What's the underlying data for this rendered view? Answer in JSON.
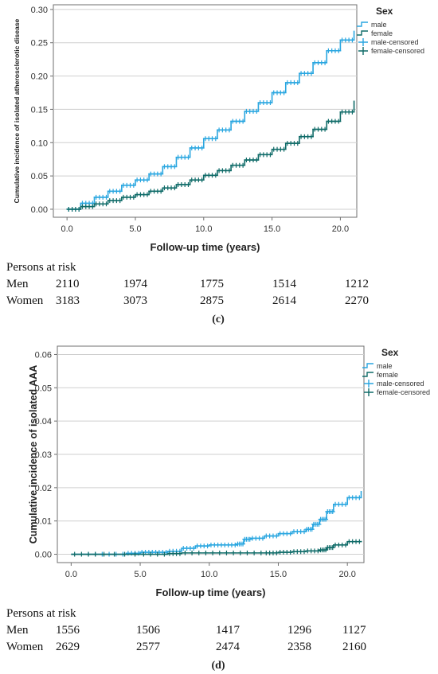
{
  "chart_data": [
    {
      "type": "line",
      "panel_label": "(c)",
      "xlabel": "Follow-up time (years)",
      "ylabel": "Cumulative incidence of isolated atherosclerotic disease",
      "xlim": [
        -1,
        21.2
      ],
      "ylim": [
        -0.012,
        0.307
      ],
      "xticks": [
        "0.0",
        "5.0",
        "10.0",
        "15.0",
        "20.0"
      ],
      "yticks": [
        "0.00",
        "0.05",
        "0.10",
        "0.15",
        "0.20",
        "0.25",
        "0.30"
      ],
      "xtick_values": [
        0,
        5,
        10,
        15,
        20
      ],
      "ytick_values": [
        0,
        0.05,
        0.1,
        0.15,
        0.2,
        0.25,
        0.3
      ],
      "grid": "horizontal",
      "legend": {
        "title": "Sex",
        "position": "top-right",
        "entries": [
          {
            "label": "male",
            "kind": "line",
            "color": "#29a6e0"
          },
          {
            "label": "female",
            "kind": "line",
            "color": "#0f6b68"
          },
          {
            "label": "male-censored",
            "kind": "plus",
            "color": "#29a6e0"
          },
          {
            "label": "female-censored",
            "kind": "plus",
            "color": "#0f6b68"
          }
        ]
      },
      "series": [
        {
          "name": "male",
          "color": "#29a6e0",
          "x": [
            0,
            1,
            2,
            3,
            4,
            5,
            6,
            7,
            8,
            9,
            10,
            11,
            12,
            13,
            14,
            15,
            16,
            17,
            18,
            19,
            20,
            21
          ],
          "y": [
            0.0,
            0.009,
            0.018,
            0.027,
            0.036,
            0.044,
            0.053,
            0.064,
            0.078,
            0.092,
            0.106,
            0.119,
            0.132,
            0.147,
            0.16,
            0.175,
            0.19,
            0.204,
            0.22,
            0.238,
            0.254,
            0.268
          ]
        },
        {
          "name": "female",
          "color": "#0f6b68",
          "x": [
            0,
            1,
            2,
            3,
            4,
            5,
            6,
            7,
            8,
            9,
            10,
            11,
            12,
            13,
            14,
            15,
            16,
            17,
            18,
            19,
            20,
            21
          ],
          "y": [
            0.0,
            0.004,
            0.008,
            0.013,
            0.018,
            0.022,
            0.027,
            0.032,
            0.037,
            0.044,
            0.051,
            0.058,
            0.066,
            0.074,
            0.082,
            0.09,
            0.099,
            0.109,
            0.12,
            0.132,
            0.146,
            0.163
          ]
        }
      ],
      "persons_at_risk": {
        "title": "Persons at risk",
        "rows": [
          {
            "label": "Men",
            "values": [
              "2110",
              "1974",
              "1775",
              "1514",
              "1212"
            ]
          },
          {
            "label": "Women",
            "values": [
              "3183",
              "3073",
              "2875",
              "2614",
              "2270"
            ]
          }
        ]
      }
    },
    {
      "type": "line",
      "panel_label": "(d)",
      "xlabel": "Follow-up time (years)",
      "ylabel": "Cumulative incidence of isolated AAA",
      "xlim": [
        -1,
        21.2
      ],
      "ylim": [
        -0.0025,
        0.0625
      ],
      "xticks": [
        "0.0",
        "5.0",
        "10.0",
        "15.0",
        "20.0"
      ],
      "yticks": [
        "0.00",
        "0.01",
        "0.02",
        "0.03",
        "0.04",
        "0.05",
        "0.06"
      ],
      "xtick_values": [
        0,
        5,
        10,
        15,
        20
      ],
      "ytick_values": [
        0,
        0.01,
        0.02,
        0.03,
        0.04,
        0.05,
        0.06
      ],
      "grid": "horizontal",
      "legend": {
        "title": "Sex",
        "position": "top-right",
        "entries": [
          {
            "label": "male",
            "kind": "line",
            "color": "#29a6e0"
          },
          {
            "label": "female",
            "kind": "line",
            "color": "#0f6b68"
          },
          {
            "label": "male-censored",
            "kind": "plus",
            "color": "#29a6e0"
          },
          {
            "label": "female-censored",
            "kind": "plus",
            "color": "#0f6b68"
          }
        ]
      },
      "series": [
        {
          "name": "male",
          "color": "#29a6e0",
          "x": [
            0,
            2,
            4,
            5,
            6,
            7,
            8,
            9,
            10,
            11,
            12,
            12.5,
            13,
            14,
            15,
            16,
            17,
            17.5,
            18,
            18.5,
            19,
            20,
            21
          ],
          "y": [
            0.0,
            0.0,
            0.0003,
            0.0006,
            0.0006,
            0.0009,
            0.0018,
            0.0025,
            0.0028,
            0.0028,
            0.0031,
            0.0045,
            0.0048,
            0.0055,
            0.0062,
            0.0068,
            0.0075,
            0.009,
            0.0105,
            0.0128,
            0.015,
            0.017,
            0.019
          ]
        },
        {
          "name": "female",
          "color": "#0f6b68",
          "x": [
            0,
            2,
            5,
            7,
            8,
            10,
            12,
            14,
            15,
            16,
            17,
            18,
            18.5,
            19,
            20,
            21
          ],
          "y": [
            0.0,
            0.0,
            0.0,
            0.0002,
            0.0004,
            0.0004,
            0.0004,
            0.0004,
            0.0006,
            0.0008,
            0.001,
            0.0013,
            0.002,
            0.0028,
            0.0038,
            0.004
          ]
        }
      ],
      "persons_at_risk": {
        "title": "Persons at risk",
        "rows": [
          {
            "label": "Men",
            "values": [
              "1556",
              "1506",
              "1417",
              "1296",
              "1127"
            ]
          },
          {
            "label": "Women",
            "values": [
              "2629",
              "2577",
              "2474",
              "2358",
              "2160"
            ]
          }
        ]
      }
    }
  ]
}
